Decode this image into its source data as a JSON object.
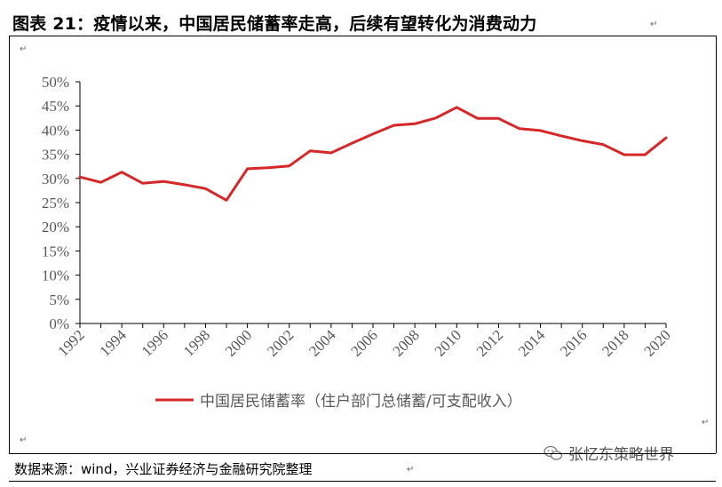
{
  "title": "图表 21：疫情以来，中国居民储蓄率走高，后续有望转化为消费动力",
  "source": "数据来源：wind，兴业证券经济与金融研究院整理",
  "watermark": "张忆东策略世界",
  "para_mark": "↵",
  "colors": {
    "line": "#d62728",
    "axis": "#000000",
    "text": "#595959"
  },
  "chart_data": {
    "type": "line",
    "x": [
      1992,
      1993,
      1994,
      1995,
      1996,
      1997,
      1998,
      1999,
      2000,
      2001,
      2002,
      2003,
      2004,
      2005,
      2006,
      2007,
      2008,
      2009,
      2010,
      2011,
      2012,
      2013,
      2014,
      2015,
      2016,
      2017,
      2018,
      2019,
      2020
    ],
    "x_tick_labels": [
      "1992",
      "1994",
      "1996",
      "1998",
      "2000",
      "2002",
      "2004",
      "2006",
      "2008",
      "2010",
      "2012",
      "2014",
      "2016",
      "2018",
      "2020"
    ],
    "y_tick_labels": [
      "0%",
      "5%",
      "10%",
      "15%",
      "20%",
      "25%",
      "30%",
      "35%",
      "40%",
      "45%",
      "50%"
    ],
    "ylim": [
      0,
      50
    ],
    "series": [
      {
        "name": "中国居民储蓄率（住户部门总储蓄/可支配收入）",
        "values": [
          30.3,
          29.2,
          31.3,
          29.0,
          29.4,
          28.7,
          27.9,
          25.5,
          32.0,
          32.2,
          32.6,
          35.7,
          35.3,
          37.3,
          39.2,
          41.0,
          41.3,
          42.5,
          44.7,
          42.4,
          42.4,
          40.3,
          39.9,
          38.8,
          37.8,
          37.0,
          34.9,
          34.9,
          38.4
        ]
      }
    ],
    "legend_position": "bottom",
    "grid": false
  }
}
